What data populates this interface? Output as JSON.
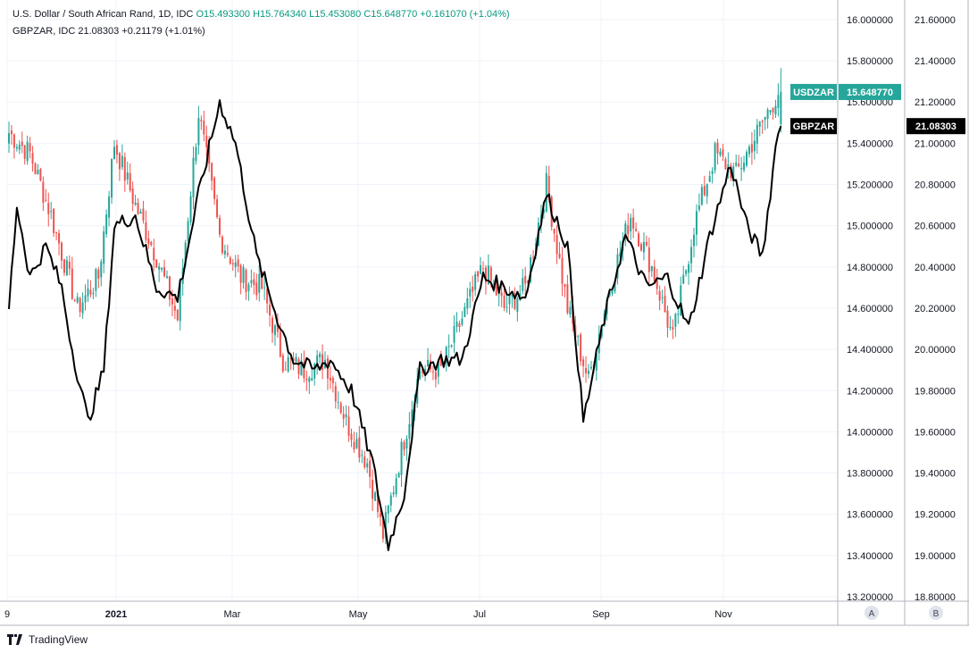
{
  "legend": {
    "main_title": "U.S. Dollar / South African Rand, 1D, IDC",
    "o": "O15.493300",
    "h": "H15.764340",
    "l": "L15.453080",
    "c": "C15.648770",
    "chg": "+0.161070 (+1.04%)",
    "compare": "GBPZAR, IDC  21.08303  +0.21179 (+1.01%)"
  },
  "branding": "TradingView",
  "scale_buttons": [
    "A",
    "B"
  ],
  "colors": {
    "up": "#26a69a",
    "down": "#ef5350",
    "line": "#000000",
    "usd_badge": "#26a69a",
    "gbp_badge": "#000000"
  },
  "chart_data": {
    "type": "candlestick",
    "x_labels": [
      "9",
      "2021",
      "Mar",
      "May",
      "Jul",
      "Sep",
      "Nov"
    ],
    "y_left_ticks": [
      "16.000000",
      "15.800000",
      "15.600000",
      "15.400000",
      "15.200000",
      "15.000000",
      "14.800000",
      "14.600000",
      "14.400000",
      "14.200000",
      "14.000000",
      "13.800000",
      "13.600000",
      "13.400000",
      "13.200000"
    ],
    "y_right_ticks": [
      "21.60000",
      "21.40000",
      "21.20000",
      "21.00000",
      "20.80000",
      "20.60000",
      "20.40000",
      "20.20000",
      "20.00000",
      "19.80000",
      "19.60000",
      "19.40000",
      "19.20000",
      "19.00000",
      "18.80000"
    ],
    "y_left_range": [
      13.2,
      16.0
    ],
    "y_right_range": [
      18.8,
      21.6
    ],
    "series": [
      {
        "name": "USDZAR",
        "last_value": "15.648770",
        "close_anchors": [
          [
            0,
            15.45
          ],
          [
            8,
            15.35
          ],
          [
            16,
            15.05
          ],
          [
            26,
            14.6
          ],
          [
            34,
            14.75
          ],
          [
            40,
            15.4
          ],
          [
            48,
            15.1
          ],
          [
            56,
            14.85
          ],
          [
            64,
            14.55
          ],
          [
            72,
            15.55
          ],
          [
            80,
            14.95
          ],
          [
            88,
            14.75
          ],
          [
            96,
            14.7
          ],
          [
            104,
            14.35
          ],
          [
            112,
            14.3
          ],
          [
            120,
            14.35
          ],
          [
            128,
            14.05
          ],
          [
            136,
            13.85
          ],
          [
            142,
            13.5
          ],
          [
            148,
            13.85
          ],
          [
            156,
            14.3
          ],
          [
            164,
            14.3
          ],
          [
            172,
            14.55
          ],
          [
            180,
            14.8
          ],
          [
            188,
            14.6
          ],
          [
            196,
            14.7
          ],
          [
            204,
            15.2
          ],
          [
            212,
            14.6
          ],
          [
            220,
            14.25
          ],
          [
            228,
            14.7
          ],
          [
            236,
            15.05
          ],
          [
            244,
            14.8
          ],
          [
            252,
            14.45
          ],
          [
            260,
            15.0
          ],
          [
            268,
            15.35
          ],
          [
            276,
            15.25
          ],
          [
            284,
            15.45
          ],
          [
            292,
            15.649
          ]
        ]
      },
      {
        "name": "GBPZAR",
        "last_value": "21.08303",
        "close_anchors": [
          [
            0,
            20.2
          ],
          [
            3,
            20.7
          ],
          [
            8,
            20.35
          ],
          [
            14,
            20.5
          ],
          [
            20,
            20.3
          ],
          [
            24,
            20.0
          ],
          [
            30,
            19.65
          ],
          [
            36,
            19.9
          ],
          [
            40,
            20.6
          ],
          [
            48,
            20.65
          ],
          [
            56,
            20.3
          ],
          [
            64,
            20.25
          ],
          [
            72,
            20.75
          ],
          [
            80,
            21.2
          ],
          [
            86,
            21.0
          ],
          [
            94,
            20.45
          ],
          [
            102,
            20.15
          ],
          [
            108,
            19.95
          ],
          [
            116,
            19.9
          ],
          [
            122,
            19.95
          ],
          [
            130,
            19.8
          ],
          [
            138,
            19.45
          ],
          [
            144,
            19.05
          ],
          [
            150,
            19.3
          ],
          [
            156,
            19.9
          ],
          [
            164,
            19.95
          ],
          [
            172,
            19.95
          ],
          [
            180,
            20.35
          ],
          [
            188,
            20.3
          ],
          [
            196,
            20.25
          ],
          [
            204,
            20.75
          ],
          [
            212,
            20.5
          ],
          [
            218,
            19.65
          ],
          [
            226,
            20.15
          ],
          [
            234,
            20.55
          ],
          [
            242,
            20.3
          ],
          [
            250,
            20.35
          ],
          [
            258,
            20.1
          ],
          [
            266,
            20.55
          ],
          [
            274,
            20.9
          ],
          [
            280,
            20.6
          ],
          [
            286,
            20.45
          ],
          [
            292,
            21.083
          ]
        ]
      }
    ]
  }
}
